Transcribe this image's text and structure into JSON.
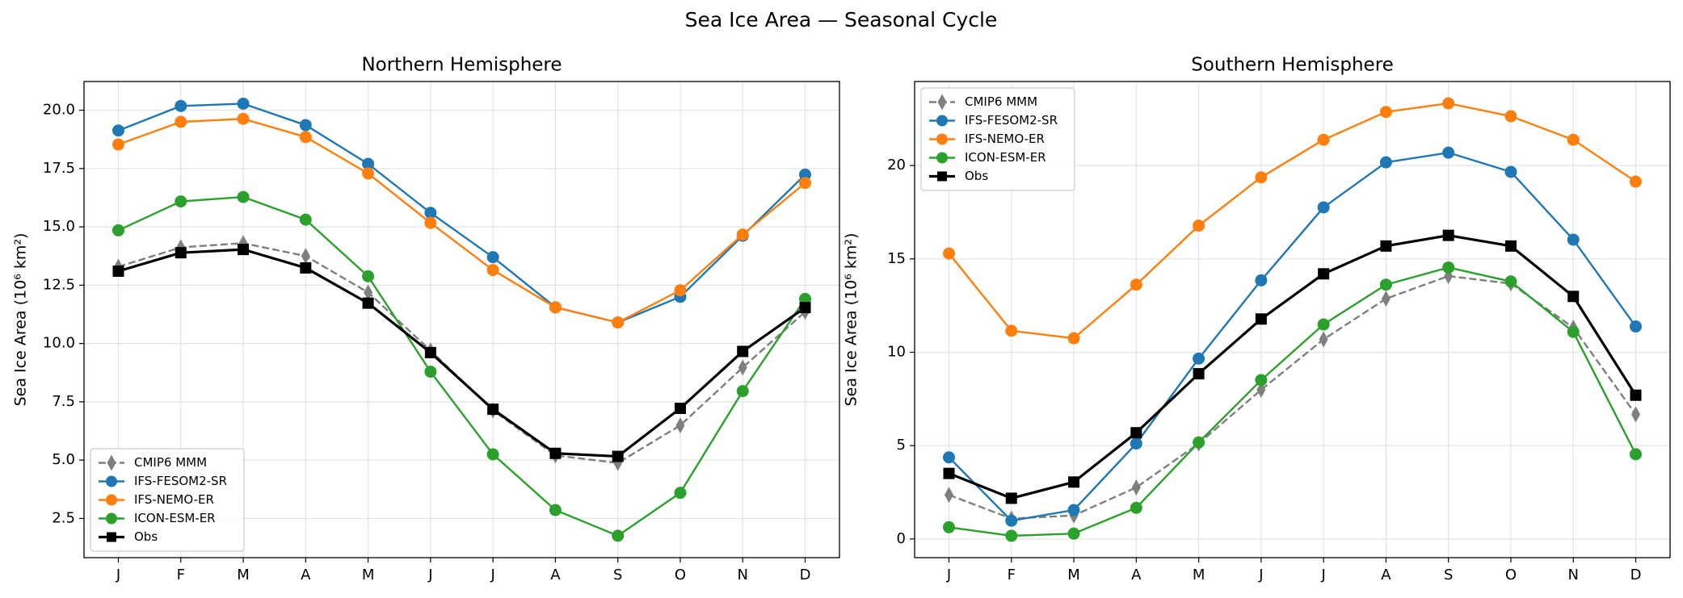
{
  "title": "Sea Ice Area — Seasonal Cycle",
  "chart_data": [
    {
      "type": "line",
      "title": "Northern Hemisphere",
      "y_label": "Sea Ice Area (10⁶ km²)",
      "categories": [
        "J",
        "F",
        "M",
        "A",
        "M",
        "J",
        "J",
        "A",
        "S",
        "O",
        "N",
        "D"
      ],
      "ylim": [
        0.82,
        21.23
      ],
      "yticks": [
        2.5,
        {
          "value": 5,
          "label": "5.0"
        },
        7.5,
        {
          "value": 10,
          "label": "10.0"
        },
        12.5,
        {
          "value": 15,
          "label": "15.0"
        },
        17.5,
        {
          "value": 20,
          "label": "20.0"
        }
      ],
      "grid": true,
      "legend": "lower left",
      "series": [
        {
          "name": "CMIP6 MMM",
          "color": "#7f7f7f",
          "marker": "thin_diamond",
          "linestyle": "--",
          "values": [
            13.29,
            14.12,
            14.3,
            13.75,
            12.19,
            9.7,
            7.13,
            5.2,
            4.88,
            6.49,
            8.97,
            11.36
          ]
        },
        {
          "name": "IFS-FESOM2-SR",
          "color": "#1f77b4",
          "marker": "circle",
          "linestyle": "-",
          "values": [
            19.13,
            20.18,
            20.28,
            19.36,
            17.7,
            15.6,
            13.7,
            11.55,
            10.9,
            12.0,
            14.62,
            17.24
          ]
        },
        {
          "name": "IFS-NEMO-ER",
          "color": "#ff7f0e",
          "marker": "circle",
          "linestyle": "-",
          "values": [
            18.53,
            19.5,
            19.63,
            18.85,
            17.29,
            15.17,
            13.15,
            11.55,
            10.9,
            12.28,
            14.67,
            16.88
          ]
        },
        {
          "name": "ICON-ESM-ER",
          "color": "#2ca02c",
          "marker": "circle",
          "linestyle": "-",
          "values": [
            14.85,
            16.09,
            16.28,
            15.31,
            12.88,
            8.79,
            5.25,
            2.86,
            1.76,
            3.6,
            7.96,
            11.91
          ]
        },
        {
          "name": "Obs",
          "color": "#000000",
          "marker": "square",
          "linestyle": "-",
          "values": [
            13.1,
            13.89,
            14.03,
            13.24,
            11.73,
            9.61,
            7.18,
            5.29,
            5.16,
            7.22,
            9.66,
            11.54
          ]
        }
      ]
    },
    {
      "type": "line",
      "title": "Southern Hemisphere",
      "y_label": "Sea Ice Area (10⁶ km²)",
      "categories": [
        "J",
        "F",
        "M",
        "A",
        "M",
        "J",
        "J",
        "A",
        "S",
        "O",
        "N",
        "D"
      ],
      "ylim": [
        -1.0,
        24.5
      ],
      "yticks": [
        0,
        5,
        10,
        15,
        20
      ],
      "grid": true,
      "legend": "upper left",
      "series": [
        {
          "name": "CMIP6 MMM",
          "color": "#7f7f7f",
          "marker": "thin_diamond",
          "linestyle": "--",
          "values": [
            2.36,
            1.09,
            1.26,
            2.76,
            5.11,
            7.99,
            10.69,
            12.87,
            14.08,
            13.68,
            11.32,
            6.67
          ]
        },
        {
          "name": "IFS-FESOM2-SR",
          "color": "#1f77b4",
          "marker": "circle",
          "linestyle": "-",
          "values": [
            4.37,
            0.98,
            1.55,
            5.11,
            9.66,
            13.85,
            17.76,
            20.17,
            20.69,
            19.66,
            16.03,
            11.38
          ]
        },
        {
          "name": "IFS-NEMO-ER",
          "color": "#ff7f0e",
          "marker": "circle",
          "linestyle": "-",
          "values": [
            15.29,
            11.15,
            10.75,
            13.62,
            16.78,
            19.37,
            21.38,
            22.87,
            23.33,
            22.64,
            21.38,
            19.14
          ]
        },
        {
          "name": "ICON-ESM-ER",
          "color": "#2ca02c",
          "marker": "circle",
          "linestyle": "-",
          "values": [
            0.63,
            0.17,
            0.29,
            1.67,
            5.17,
            8.51,
            11.49,
            13.62,
            14.54,
            13.79,
            11.09,
            4.54
          ]
        },
        {
          "name": "Obs",
          "color": "#000000",
          "marker": "square",
          "linestyle": "-",
          "values": [
            3.51,
            2.18,
            3.05,
            5.69,
            8.85,
            11.78,
            14.2,
            15.69,
            16.26,
            15.69,
            12.99,
            7.7
          ]
        }
      ]
    }
  ]
}
